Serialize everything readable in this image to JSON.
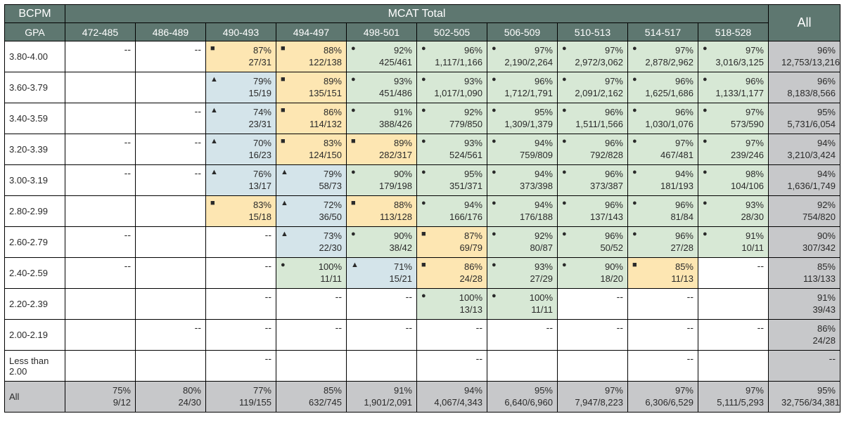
{
  "header": {
    "left_top": "BCPM",
    "left_bottom": "GPA",
    "span_title": "MCAT Total",
    "all_label": "All"
  },
  "mcat_cols": [
    "472-485",
    "486-489",
    "490-493",
    "494-497",
    "498-501",
    "502-505",
    "506-509",
    "510-513",
    "514-517",
    "518-528"
  ],
  "row_labels": [
    "3.80-4.00",
    "3.60-3.79",
    "3.40-3.59",
    "3.20-3.39",
    "3.00-3.19",
    "2.80-2.99",
    "2.60-2.79",
    "2.40-2.59",
    "2.20-2.39",
    "2.00-2.19",
    "Less than 2.00",
    "All"
  ],
  "colors": {
    "green": "#d7e8d5",
    "yellow": "#fde6b2",
    "blue": "#d4e4ea",
    "gray": "#c7c8ca",
    "white": "#ffffff",
    "header": "#5e7770"
  },
  "markers": {
    "circle": "●",
    "square": "■",
    "triangle": "▲"
  },
  "rows": [
    {
      "cells": [
        {
          "t": "dash"
        },
        {
          "t": "dash"
        },
        {
          "pct": "87%",
          "frac": "27/31",
          "bg": "yellow",
          "m": "square"
        },
        {
          "pct": "88%",
          "frac": "122/138",
          "bg": "yellow",
          "m": "square"
        },
        {
          "pct": "92%",
          "frac": "425/461",
          "bg": "green",
          "m": "circle"
        },
        {
          "pct": "96%",
          "frac": "1,117/1,166",
          "bg": "green",
          "m": "circle"
        },
        {
          "pct": "97%",
          "frac": "2,190/2,264",
          "bg": "green",
          "m": "circle"
        },
        {
          "pct": "97%",
          "frac": "2,972/3,062",
          "bg": "green",
          "m": "circle"
        },
        {
          "pct": "97%",
          "frac": "2,878/2,962",
          "bg": "green",
          "m": "circle"
        },
        {
          "pct": "97%",
          "frac": "3,016/3,125",
          "bg": "green",
          "m": "circle"
        }
      ],
      "all": {
        "pct": "96%",
        "frac": "12,753/13,216",
        "bg": "gray"
      }
    },
    {
      "cells": [
        {
          "t": "empty"
        },
        {
          "t": "empty"
        },
        {
          "pct": "79%",
          "frac": "15/19",
          "bg": "blue",
          "m": "triangle"
        },
        {
          "pct": "89%",
          "frac": "135/151",
          "bg": "yellow",
          "m": "square"
        },
        {
          "pct": "93%",
          "frac": "451/486",
          "bg": "green",
          "m": "circle"
        },
        {
          "pct": "93%",
          "frac": "1,017/1,090",
          "bg": "green",
          "m": "circle"
        },
        {
          "pct": "96%",
          "frac": "1,712/1,791",
          "bg": "green",
          "m": "circle"
        },
        {
          "pct": "97%",
          "frac": "2,091/2,162",
          "bg": "green",
          "m": "circle"
        },
        {
          "pct": "96%",
          "frac": "1,625/1,686",
          "bg": "green",
          "m": "circle"
        },
        {
          "pct": "96%",
          "frac": "1,133/1,177",
          "bg": "green",
          "m": "circle"
        }
      ],
      "all": {
        "pct": "96%",
        "frac": "8,183/8,566",
        "bg": "gray"
      }
    },
    {
      "cells": [
        {
          "t": "empty"
        },
        {
          "t": "dash"
        },
        {
          "pct": "74%",
          "frac": "23/31",
          "bg": "blue",
          "m": "triangle"
        },
        {
          "pct": "86%",
          "frac": "114/132",
          "bg": "yellow",
          "m": "square"
        },
        {
          "pct": "91%",
          "frac": "388/426",
          "bg": "green",
          "m": "circle"
        },
        {
          "pct": "92%",
          "frac": "779/850",
          "bg": "green",
          "m": "circle"
        },
        {
          "pct": "95%",
          "frac": "1,309/1,379",
          "bg": "green",
          "m": "circle"
        },
        {
          "pct": "96%",
          "frac": "1,511/1,566",
          "bg": "green",
          "m": "circle"
        },
        {
          "pct": "96%",
          "frac": "1,030/1,076",
          "bg": "green",
          "m": "circle"
        },
        {
          "pct": "97%",
          "frac": "573/590",
          "bg": "green",
          "m": "circle"
        }
      ],
      "all": {
        "pct": "95%",
        "frac": "5,731/6,054",
        "bg": "gray"
      }
    },
    {
      "cells": [
        {
          "t": "dash"
        },
        {
          "t": "dash"
        },
        {
          "pct": "70%",
          "frac": "16/23",
          "bg": "blue",
          "m": "triangle"
        },
        {
          "pct": "83%",
          "frac": "124/150",
          "bg": "yellow",
          "m": "square"
        },
        {
          "pct": "89%",
          "frac": "282/317",
          "bg": "yellow",
          "m": "square"
        },
        {
          "pct": "93%",
          "frac": "524/561",
          "bg": "green",
          "m": "circle"
        },
        {
          "pct": "94%",
          "frac": "759/809",
          "bg": "green",
          "m": "circle"
        },
        {
          "pct": "96%",
          "frac": "792/828",
          "bg": "green",
          "m": "circle"
        },
        {
          "pct": "97%",
          "frac": "467/481",
          "bg": "green",
          "m": "circle"
        },
        {
          "pct": "97%",
          "frac": "239/246",
          "bg": "green",
          "m": "circle"
        }
      ],
      "all": {
        "pct": "94%",
        "frac": "3,210/3,424",
        "bg": "gray"
      }
    },
    {
      "cells": [
        {
          "t": "dash"
        },
        {
          "t": "dash"
        },
        {
          "pct": "76%",
          "frac": "13/17",
          "bg": "blue",
          "m": "triangle"
        },
        {
          "pct": "79%",
          "frac": "58/73",
          "bg": "blue",
          "m": "triangle"
        },
        {
          "pct": "90%",
          "frac": "179/198",
          "bg": "green",
          "m": "circle"
        },
        {
          "pct": "95%",
          "frac": "351/371",
          "bg": "green",
          "m": "circle"
        },
        {
          "pct": "94%",
          "frac": "373/398",
          "bg": "green",
          "m": "circle"
        },
        {
          "pct": "96%",
          "frac": "373/387",
          "bg": "green",
          "m": "circle"
        },
        {
          "pct": "94%",
          "frac": "181/193",
          "bg": "green",
          "m": "circle"
        },
        {
          "pct": "98%",
          "frac": "104/106",
          "bg": "green",
          "m": "circle"
        }
      ],
      "all": {
        "pct": "94%",
        "frac": "1,636/1,749",
        "bg": "gray"
      }
    },
    {
      "cells": [
        {
          "t": "empty"
        },
        {
          "t": "empty"
        },
        {
          "pct": "83%",
          "frac": "15/18",
          "bg": "yellow",
          "m": "square"
        },
        {
          "pct": "72%",
          "frac": "36/50",
          "bg": "blue",
          "m": "triangle"
        },
        {
          "pct": "88%",
          "frac": "113/128",
          "bg": "yellow",
          "m": "square"
        },
        {
          "pct": "94%",
          "frac": "166/176",
          "bg": "green",
          "m": "circle"
        },
        {
          "pct": "94%",
          "frac": "176/188",
          "bg": "green",
          "m": "circle"
        },
        {
          "pct": "96%",
          "frac": "137/143",
          "bg": "green",
          "m": "circle"
        },
        {
          "pct": "96%",
          "frac": "81/84",
          "bg": "green",
          "m": "circle"
        },
        {
          "pct": "93%",
          "frac": "28/30",
          "bg": "green",
          "m": "circle"
        }
      ],
      "all": {
        "pct": "92%",
        "frac": "754/820",
        "bg": "gray"
      }
    },
    {
      "cells": [
        {
          "t": "dash"
        },
        {
          "t": "empty"
        },
        {
          "t": "dash"
        },
        {
          "pct": "73%",
          "frac": "22/30",
          "bg": "blue",
          "m": "triangle"
        },
        {
          "pct": "90%",
          "frac": "38/42",
          "bg": "green",
          "m": "circle"
        },
        {
          "pct": "87%",
          "frac": "69/79",
          "bg": "yellow",
          "m": "square"
        },
        {
          "pct": "92%",
          "frac": "80/87",
          "bg": "green",
          "m": "circle"
        },
        {
          "pct": "96%",
          "frac": "50/52",
          "bg": "green",
          "m": "circle"
        },
        {
          "pct": "96%",
          "frac": "27/28",
          "bg": "green",
          "m": "circle"
        },
        {
          "pct": "91%",
          "frac": "10/11",
          "bg": "green",
          "m": "circle"
        }
      ],
      "all": {
        "pct": "90%",
        "frac": "307/342",
        "bg": "gray"
      }
    },
    {
      "cells": [
        {
          "t": "dash"
        },
        {
          "t": "empty"
        },
        {
          "t": "dash"
        },
        {
          "pct": "100%",
          "frac": "11/11",
          "bg": "green",
          "m": "circle"
        },
        {
          "pct": "71%",
          "frac": "15/21",
          "bg": "blue",
          "m": "triangle"
        },
        {
          "pct": "86%",
          "frac": "24/28",
          "bg": "yellow",
          "m": "square"
        },
        {
          "pct": "93%",
          "frac": "27/29",
          "bg": "green",
          "m": "circle"
        },
        {
          "pct": "90%",
          "frac": "18/20",
          "bg": "green",
          "m": "circle"
        },
        {
          "pct": "85%",
          "frac": "11/13",
          "bg": "yellow",
          "m": "square"
        },
        {
          "t": "dash"
        }
      ],
      "all": {
        "pct": "85%",
        "frac": "113/133",
        "bg": "gray"
      }
    },
    {
      "cells": [
        {
          "t": "empty"
        },
        {
          "t": "empty"
        },
        {
          "t": "dash"
        },
        {
          "t": "dash"
        },
        {
          "t": "dash"
        },
        {
          "pct": "100%",
          "frac": "13/13",
          "bg": "green",
          "m": "circle"
        },
        {
          "pct": "100%",
          "frac": "11/11",
          "bg": "green",
          "m": "circle"
        },
        {
          "t": "dash"
        },
        {
          "t": "dash"
        },
        {
          "t": "empty"
        }
      ],
      "all": {
        "pct": "91%",
        "frac": "39/43",
        "bg": "gray"
      }
    },
    {
      "cells": [
        {
          "t": "empty"
        },
        {
          "t": "dash"
        },
        {
          "t": "dash"
        },
        {
          "t": "dash"
        },
        {
          "t": "dash"
        },
        {
          "t": "dash"
        },
        {
          "t": "dash"
        },
        {
          "t": "dash"
        },
        {
          "t": "dash"
        },
        {
          "t": "dash"
        }
      ],
      "all": {
        "pct": "86%",
        "frac": "24/28",
        "bg": "gray"
      }
    },
    {
      "cells": [
        {
          "t": "empty"
        },
        {
          "t": "empty"
        },
        {
          "t": "dash"
        },
        {
          "t": "empty"
        },
        {
          "t": "empty"
        },
        {
          "t": "dash"
        },
        {
          "t": "empty"
        },
        {
          "t": "empty"
        },
        {
          "t": "dash"
        },
        {
          "t": "empty"
        }
      ],
      "all": {
        "t": "dash",
        "bg": "gray"
      }
    },
    {
      "is_all": true,
      "cells": [
        {
          "pct": "75%",
          "frac": "9/12",
          "bg": "gray"
        },
        {
          "pct": "80%",
          "frac": "24/30",
          "bg": "gray"
        },
        {
          "pct": "77%",
          "frac": "119/155",
          "bg": "gray"
        },
        {
          "pct": "85%",
          "frac": "632/745",
          "bg": "gray"
        },
        {
          "pct": "91%",
          "frac": "1,901/2,091",
          "bg": "gray"
        },
        {
          "pct": "94%",
          "frac": "4,067/4,343",
          "bg": "gray"
        },
        {
          "pct": "95%",
          "frac": "6,640/6,960",
          "bg": "gray"
        },
        {
          "pct": "97%",
          "frac": "7,947/8,223",
          "bg": "gray"
        },
        {
          "pct": "97%",
          "frac": "6,306/6,529",
          "bg": "gray"
        },
        {
          "pct": "97%",
          "frac": "5,111/5,293",
          "bg": "gray"
        }
      ],
      "all": {
        "pct": "95%",
        "frac": "32,756/34,381",
        "bg": "gray"
      }
    }
  ]
}
